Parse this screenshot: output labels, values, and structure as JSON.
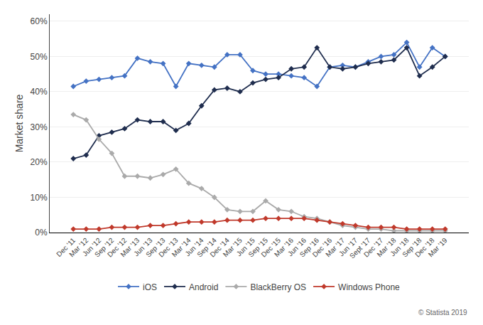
{
  "chart_data": {
    "type": "line",
    "y_label": "Market share",
    "categories": [
      "Dec '11",
      "Mar '12",
      "Jun '12",
      "Sep '12",
      "Dec '12",
      "Mar '13",
      "Jun '13",
      "Sep '13",
      "Dec '13",
      "Mar '14",
      "Jun '14",
      "Sep '14",
      "Dec '14",
      "Mar '15",
      "Jun '15",
      "Sep '15",
      "Dec '15",
      "Mar '16",
      "Jun '16",
      "Sep '16",
      "Dec '16",
      "Mar '17",
      "Jun '17",
      "Sept '17",
      "Dec '17",
      "Mar '18",
      "Jun '18",
      "Sep '18",
      "Dec '18",
      "Mar '19"
    ],
    "series": [
      {
        "name": "iOS",
        "color": "#4472c4",
        "values": [
          0.415,
          0.43,
          0.435,
          0.44,
          0.445,
          0.495,
          0.485,
          0.48,
          0.415,
          0.48,
          0.475,
          0.47,
          0.505,
          0.505,
          0.46,
          0.45,
          0.45,
          0.445,
          0.44,
          0.415,
          0.47,
          0.475,
          0.47,
          0.485,
          0.5,
          0.505,
          0.54,
          0.47,
          0.525,
          0.5
        ]
      },
      {
        "name": "Android",
        "color": "#1f2d4e",
        "values": [
          0.21,
          0.22,
          0.275,
          0.285,
          0.295,
          0.32,
          0.315,
          0.315,
          0.29,
          0.31,
          0.36,
          0.405,
          0.41,
          0.4,
          0.425,
          0.435,
          0.44,
          0.465,
          0.47,
          0.525,
          0.47,
          0.465,
          0.47,
          0.48,
          0.485,
          0.49,
          0.525,
          0.445,
          0.47,
          0.5
        ]
      },
      {
        "name": "BlackBerry OS",
        "color": "#aaaaaa",
        "values": [
          0.335,
          0.32,
          0.265,
          0.225,
          0.16,
          0.16,
          0.155,
          0.165,
          0.18,
          0.14,
          0.125,
          0.1,
          0.065,
          0.06,
          0.06,
          0.09,
          0.065,
          0.06,
          0.045,
          0.04,
          0.03,
          0.02,
          0.015,
          0.01,
          0.01,
          0.005,
          0.005,
          0.005,
          0.005,
          0.005
        ]
      },
      {
        "name": "Windows Phone",
        "color": "#c0392b",
        "values": [
          0.01,
          0.01,
          0.01,
          0.015,
          0.015,
          0.015,
          0.02,
          0.02,
          0.025,
          0.03,
          0.03,
          0.03,
          0.035,
          0.035,
          0.035,
          0.04,
          0.04,
          0.04,
          0.04,
          0.035,
          0.03,
          0.025,
          0.02,
          0.015,
          0.015,
          0.015,
          0.01,
          0.01,
          0.01,
          0.01
        ]
      }
    ],
    "ylim": [
      0,
      0.62
    ],
    "yticks": [
      {
        "value": 0.0,
        "label": "0%"
      },
      {
        "value": 0.1,
        "label": "10%"
      },
      {
        "value": 0.2,
        "label": "20%"
      },
      {
        "value": 0.3,
        "label": "30%"
      },
      {
        "value": 0.4,
        "label": "40%"
      },
      {
        "value": 0.5,
        "label": "50%"
      },
      {
        "value": 0.6,
        "label": "60%"
      }
    ],
    "grid": true,
    "legend": "bottom",
    "marker": "diamond",
    "annotations": [
      "© Statista 2019"
    ]
  }
}
